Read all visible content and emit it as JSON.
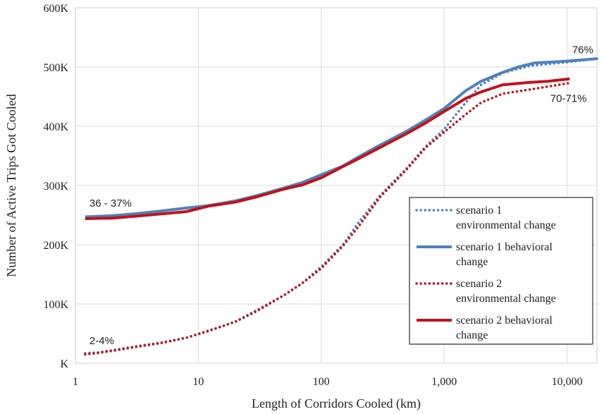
{
  "chart_data": {
    "type": "line",
    "title": "",
    "xlabel": "Length of Corridors Cooled (km)",
    "ylabel": "Number of Active Trips Got Cooled",
    "xscale": "log",
    "xlim": [
      1,
      17500
    ],
    "ylim": [
      0,
      600000
    ],
    "grid": true,
    "legend_position": "bottom-right",
    "x_ticks": [
      {
        "value": 1,
        "label": "1"
      },
      {
        "value": 10,
        "label": "10"
      },
      {
        "value": 100,
        "label": "100"
      },
      {
        "value": 1000,
        "label": "1,000"
      },
      {
        "value": 10000,
        "label": "10,000"
      }
    ],
    "y_ticks": [
      {
        "value": 0,
        "label": "K"
      },
      {
        "value": 100000,
        "label": "100K"
      },
      {
        "value": 200000,
        "label": "200K"
      },
      {
        "value": 300000,
        "label": "300K"
      },
      {
        "value": 400000,
        "label": "400K"
      },
      {
        "value": 500000,
        "label": "500K"
      },
      {
        "value": 600000,
        "label": "600K"
      }
    ],
    "series": [
      {
        "name": "scenario 1 environmental change",
        "legend_lines": [
          "scenario 1",
          "environmental change"
        ],
        "color": "#4e81bd",
        "style": "dotted",
        "points": [
          [
            1.2,
            17000
          ],
          [
            1.5,
            18000
          ],
          [
            2,
            22000
          ],
          [
            3,
            28000
          ],
          [
            5,
            35000
          ],
          [
            8,
            43000
          ],
          [
            12,
            55000
          ],
          [
            20,
            70000
          ],
          [
            30,
            90000
          ],
          [
            50,
            115000
          ],
          [
            70,
            135000
          ],
          [
            100,
            163000
          ],
          [
            150,
            200000
          ],
          [
            200,
            237000
          ],
          [
            300,
            283000
          ],
          [
            500,
            330000
          ],
          [
            700,
            365000
          ],
          [
            1000,
            395000
          ],
          [
            1500,
            440000
          ],
          [
            2000,
            470000
          ],
          [
            3000,
            490000
          ],
          [
            5000,
            502000
          ],
          [
            7000,
            505000
          ],
          [
            10000,
            508000
          ],
          [
            17500,
            514000
          ]
        ]
      },
      {
        "name": "scenario 1 behavioral change",
        "legend_lines": [
          "scenario 1 behavioral",
          "change"
        ],
        "color": "#4e81bd",
        "style": "solid",
        "points": [
          [
            1.2,
            247000
          ],
          [
            2,
            249000
          ],
          [
            3,
            252000
          ],
          [
            5,
            257000
          ],
          [
            8,
            262000
          ],
          [
            12,
            266000
          ],
          [
            20,
            274000
          ],
          [
            30,
            283000
          ],
          [
            50,
            296000
          ],
          [
            70,
            305000
          ],
          [
            100,
            318000
          ],
          [
            150,
            333000
          ],
          [
            200,
            348000
          ],
          [
            300,
            368000
          ],
          [
            500,
            392000
          ],
          [
            700,
            410000
          ],
          [
            1000,
            430000
          ],
          [
            1500,
            460000
          ],
          [
            2000,
            476000
          ],
          [
            3000,
            491000
          ],
          [
            4000,
            500000
          ],
          [
            5500,
            507000
          ],
          [
            7000,
            508000
          ],
          [
            10000,
            510000
          ],
          [
            17500,
            514000
          ]
        ]
      },
      {
        "name": "scenario 2 environmental change",
        "legend_lines": [
          "scenario 2",
          "environmental change"
        ],
        "color": "#c0121c",
        "style": "dotted",
        "points": [
          [
            1.2,
            15000
          ],
          [
            1.5,
            17000
          ],
          [
            2,
            21000
          ],
          [
            3,
            27000
          ],
          [
            5,
            34000
          ],
          [
            8,
            43000
          ],
          [
            12,
            54000
          ],
          [
            20,
            70000
          ],
          [
            30,
            88000
          ],
          [
            50,
            115000
          ],
          [
            70,
            135000
          ],
          [
            100,
            160000
          ],
          [
            150,
            198000
          ],
          [
            200,
            230000
          ],
          [
            300,
            280000
          ],
          [
            500,
            328000
          ],
          [
            700,
            363000
          ],
          [
            1000,
            390000
          ],
          [
            1500,
            420000
          ],
          [
            2000,
            440000
          ],
          [
            3000,
            455000
          ],
          [
            5000,
            462000
          ],
          [
            7000,
            467000
          ],
          [
            10500,
            473000
          ]
        ]
      },
      {
        "name": "scenario 2 behavioral change",
        "legend_lines": [
          "scenario 2 behavioral",
          "change"
        ],
        "color": "#c0121c",
        "style": "solid",
        "points": [
          [
            1.2,
            244000
          ],
          [
            2,
            245000
          ],
          [
            3,
            248000
          ],
          [
            5,
            252000
          ],
          [
            8,
            256000
          ],
          [
            12,
            265000
          ],
          [
            20,
            272000
          ],
          [
            30,
            281000
          ],
          [
            50,
            294000
          ],
          [
            70,
            301000
          ],
          [
            100,
            313000
          ],
          [
            150,
            332000
          ],
          [
            200,
            345000
          ],
          [
            300,
            364000
          ],
          [
            500,
            388000
          ],
          [
            700,
            405000
          ],
          [
            1000,
            425000
          ],
          [
            1500,
            447000
          ],
          [
            2000,
            458000
          ],
          [
            3000,
            470000
          ],
          [
            5000,
            474000
          ],
          [
            7000,
            476000
          ],
          [
            10500,
            480000
          ]
        ]
      }
    ],
    "annotations": [
      {
        "text": "36 - 37%",
        "x": 1.3,
        "y": 264000
      },
      {
        "text": "2-4%",
        "x": 1.3,
        "y": 32000
      },
      {
        "text": "76%",
        "x": 11000,
        "y": 523000
      },
      {
        "text": "70-71%",
        "x": 7300,
        "y": 441000
      }
    ]
  }
}
